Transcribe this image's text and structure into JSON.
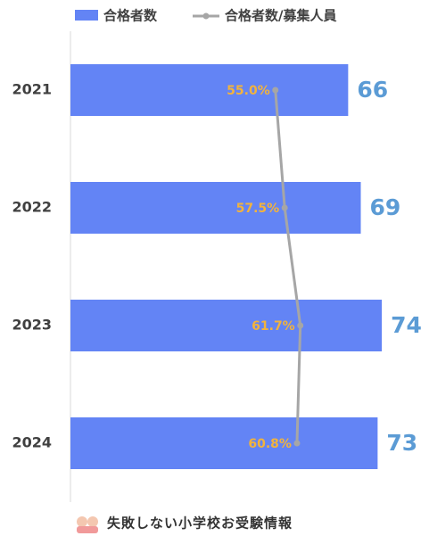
{
  "chart_data": {
    "type": "bar-line",
    "categories": [
      "2021",
      "2022",
      "2023",
      "2024"
    ],
    "series": [
      {
        "name": "合格者数",
        "color": "#6384F5",
        "values": [
          66,
          69,
          74,
          73
        ]
      },
      {
        "name": "合格者数/募集人員",
        "color": "#A6A6A6",
        "axis": "x2",
        "values": [
          55.0,
          57.5,
          61.7,
          60.8
        ],
        "value_labels": [
          "55.0%",
          "57.5%",
          "61.7%",
          "60.8%"
        ]
      }
    ],
    "xlim": [
      0,
      85
    ],
    "x2lim": [
      0,
      96
    ],
    "legend": "top"
  },
  "footer": {
    "text": "失敗しない小学校お受験情報"
  }
}
